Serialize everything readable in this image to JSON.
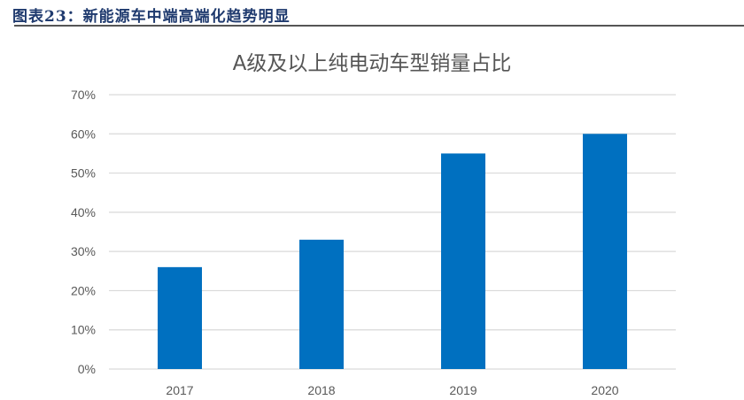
{
  "header": {
    "title": "图表23：新能源车中端高端化趋势明显"
  },
  "chart_data": {
    "type": "bar",
    "title": "A级及以上纯电动车型销量占比",
    "categories": [
      "2017",
      "2018",
      "2019",
      "2020"
    ],
    "values": [
      26,
      33,
      55,
      60
    ],
    "unit": "%",
    "xlabel": "",
    "ylabel": "",
    "ylim": [
      0,
      70
    ],
    "yticks": [
      "0%",
      "10%",
      "20%",
      "30%",
      "40%",
      "50%",
      "60%",
      "70%"
    ],
    "grid": true,
    "legend": "none",
    "bar_color": "#0070c0"
  }
}
